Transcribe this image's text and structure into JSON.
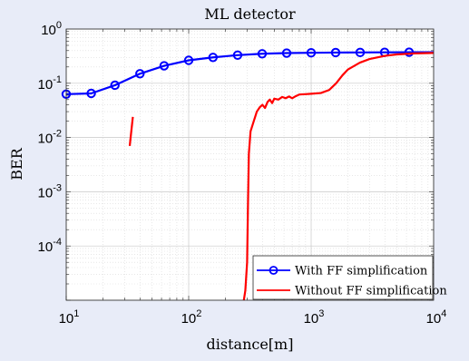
{
  "chart_data": {
    "type": "line",
    "title": "ML detector",
    "xlabel": "distance[m]",
    "ylabel": "BER",
    "x_scale": "log",
    "y_scale": "log",
    "xlim": [
      10,
      10000
    ],
    "ylim": [
      1e-05,
      1
    ],
    "grid": true,
    "minor_grid": true,
    "legend_position": "bottom-right",
    "x_ticks": [
      {
        "value": 10,
        "base": "10",
        "exp": "1"
      },
      {
        "value": 100,
        "base": "10",
        "exp": "2"
      },
      {
        "value": 1000,
        "base": "10",
        "exp": "3"
      },
      {
        "value": 10000,
        "base": "10",
        "exp": "4"
      }
    ],
    "y_ticks": [
      {
        "value": 1,
        "base": "10",
        "exp": "0"
      },
      {
        "value": 0.1,
        "base": "10",
        "exp": "-1"
      },
      {
        "value": 0.01,
        "base": "10",
        "exp": "-2"
      },
      {
        "value": 0.001,
        "base": "10",
        "exp": "-3"
      },
      {
        "value": 0.0001,
        "base": "10",
        "exp": "-4"
      }
    ],
    "series": [
      {
        "name": "With FF simplification",
        "color": "#0000ff",
        "marker": "circle",
        "segments": [
          [
            [
              10,
              0.063
            ],
            [
              16,
              0.065
            ],
            [
              25,
              0.092
            ],
            [
              40,
              0.15
            ],
            [
              63,
              0.21
            ],
            [
              100,
              0.265
            ],
            [
              158,
              0.3
            ],
            [
              251,
              0.33
            ],
            [
              398,
              0.35
            ],
            [
              631,
              0.36
            ],
            [
              1000,
              0.365
            ],
            [
              1585,
              0.368
            ],
            [
              2512,
              0.37
            ],
            [
              3981,
              0.372
            ],
            [
              6310,
              0.373
            ],
            [
              10000,
              0.374
            ]
          ]
        ],
        "markers": [
          [
            10,
            0.063
          ],
          [
            16,
            0.065
          ],
          [
            25,
            0.092
          ],
          [
            40,
            0.15
          ],
          [
            63,
            0.21
          ],
          [
            100,
            0.265
          ],
          [
            158,
            0.3
          ],
          [
            251,
            0.33
          ],
          [
            398,
            0.35
          ],
          [
            631,
            0.36
          ],
          [
            1000,
            0.365
          ],
          [
            1585,
            0.368
          ],
          [
            2512,
            0.37
          ],
          [
            3981,
            0.372
          ],
          [
            6310,
            0.373
          ]
        ]
      },
      {
        "name": "Without FF simplification",
        "color": "#ff0000",
        "marker": "none",
        "segments": [
          [
            [
              33,
              0.007
            ],
            [
              35,
              0.024
            ]
          ],
          [
            [
              282,
              1e-05
            ],
            [
              290,
              1.5e-05
            ],
            [
              300,
              5e-05
            ],
            [
              305,
              0.0006
            ],
            [
              310,
              0.005
            ],
            [
              320,
              0.013
            ],
            [
              340,
              0.02
            ],
            [
              360,
              0.03
            ],
            [
              380,
              0.036
            ],
            [
              400,
              0.04
            ],
            [
              420,
              0.035
            ],
            [
              440,
              0.045
            ],
            [
              460,
              0.05
            ],
            [
              480,
              0.043
            ],
            [
              500,
              0.052
            ],
            [
              540,
              0.05
            ],
            [
              580,
              0.056
            ],
            [
              620,
              0.053
            ],
            [
              660,
              0.057
            ],
            [
              700,
              0.053
            ],
            [
              750,
              0.058
            ],
            [
              800,
              0.062
            ],
            [
              900,
              0.063
            ],
            [
              1000,
              0.064
            ],
            [
              1200,
              0.066
            ],
            [
              1400,
              0.075
            ],
            [
              1600,
              0.1
            ],
            [
              1800,
              0.14
            ],
            [
              2000,
              0.18
            ],
            [
              2500,
              0.24
            ],
            [
              3000,
              0.28
            ],
            [
              4000,
              0.32
            ],
            [
              5000,
              0.34
            ],
            [
              7000,
              0.355
            ],
            [
              10000,
              0.362
            ]
          ]
        ]
      }
    ]
  }
}
